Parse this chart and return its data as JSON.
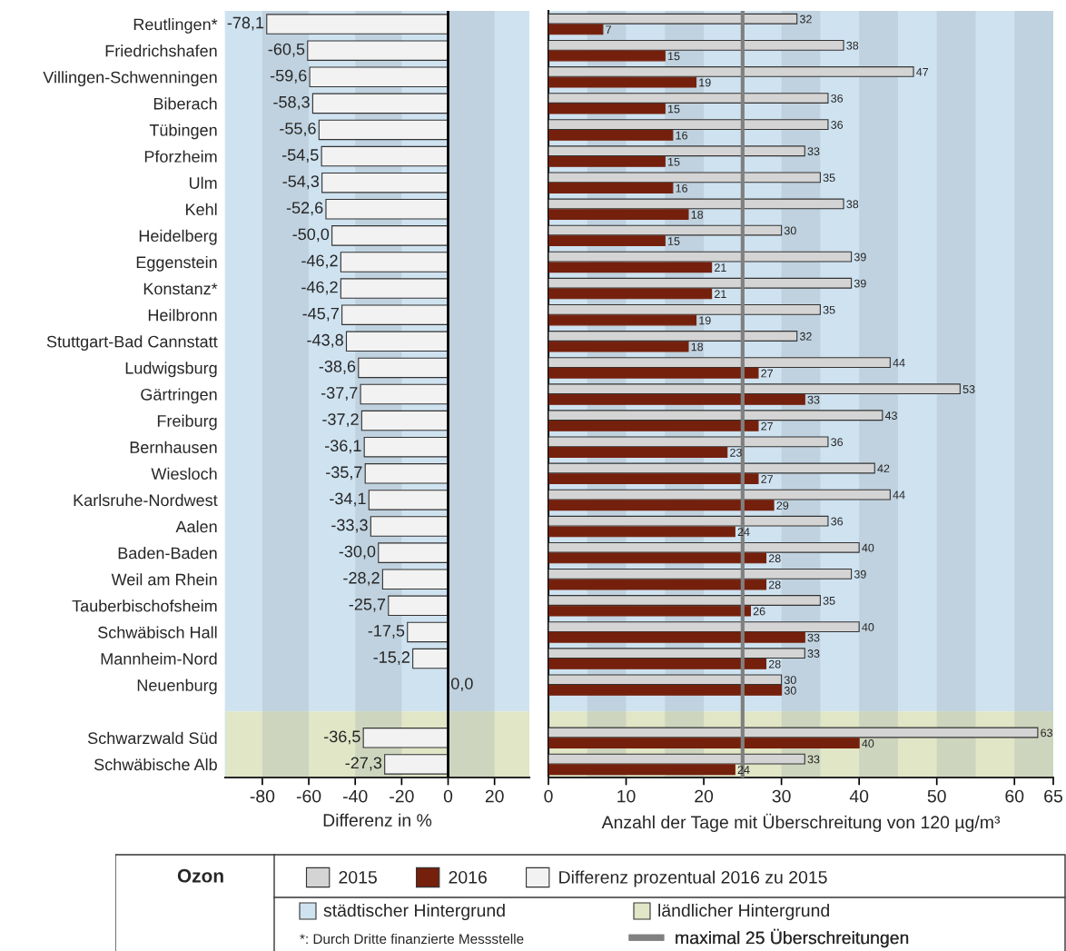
{
  "chart_data": [
    {
      "type": "bar",
      "orientation": "horizontal",
      "xlabel": "Differenz in %",
      "categories": [
        "Reutlingen*",
        "Friedrichshafen",
        "Villingen-Schwenningen",
        "Biberach",
        "Tübingen",
        "Pforzheim",
        "Ulm",
        "Kehl",
        "Heidelberg",
        "Eggenstein",
        "Konstanz*",
        "Heilbronn",
        "Stuttgart-Bad Cannstatt",
        "Ludwigsburg",
        "Gärtringen",
        "Freiburg",
        "Bernhausen",
        "Wiesloch",
        "Karlsruhe-Nordwest",
        "Aalen",
        "Baden-Baden",
        "Weil am Rhein",
        "Tauberbischofsheim",
        "Schwäbisch Hall",
        "Mannheim-Nord",
        "Neuenburg",
        null,
        "Schwarzwald Süd",
        "Schwäbische Alb"
      ],
      "series": [
        {
          "name": "Differenz prozentual 2016 zu 2015",
          "color": "#f2f2f2",
          "values": [
            -78.1,
            -60.5,
            -59.6,
            -58.3,
            -55.6,
            -54.5,
            -54.3,
            -52.6,
            -50.0,
            -46.2,
            -46.2,
            -45.7,
            -43.8,
            -38.6,
            -37.7,
            -37.2,
            -36.1,
            -35.7,
            -34.1,
            -33.3,
            -30.0,
            -28.2,
            -25.7,
            -17.5,
            -15.2,
            0.0,
            null,
            -36.5,
            -27.3
          ],
          "value_labels": [
            "-78,1",
            "-60,5",
            "-59,6",
            "-58,3",
            "-55,6",
            "-54,5",
            "-54,3",
            "-52,6",
            "-50,0",
            "-46,2",
            "-46,2",
            "-45,7",
            "-43,8",
            "-38,6",
            "-37,7",
            "-37,2",
            "-36,1",
            "-35,7",
            "-34,1",
            "-33,3",
            "-30,0",
            "-28,2",
            "-25,7",
            "-17,5",
            "-15,2",
            "0,0",
            null,
            "-36,5",
            "-27,3"
          ]
        }
      ],
      "xlim": [
        -96,
        35
      ],
      "xticks": [
        -80,
        -60,
        -40,
        -20,
        0,
        20
      ],
      "ref_lines": [
        {
          "axis": "x",
          "value": 0,
          "color": "#000000"
        }
      ],
      "bands": [
        {
          "axis": "x",
          "from": -80,
          "to": -60,
          "color": "#8c9aa6"
        },
        {
          "axis": "x",
          "from": -40,
          "to": -20,
          "color": "#8c9aa6"
        },
        {
          "axis": "x",
          "from": 0,
          "to": 20,
          "color": "#8c9aa6"
        }
      ],
      "annotations": [
        "*: Durch Dritte finanzierte Messstelle"
      ],
      "legend": "bottom",
      "grid": false
    },
    {
      "type": "bar",
      "orientation": "horizontal",
      "xlabel": "Anzahl der Tage mit Überschreitung von 120 µg/m³",
      "legend_title": "Ozon",
      "categories": [
        null,
        null,
        null,
        null,
        null,
        null,
        null,
        null,
        null,
        null,
        null,
        null,
        null,
        null,
        null,
        null,
        null,
        null,
        null,
        null,
        null,
        null,
        null,
        null,
        null,
        null,
        null,
        null,
        null
      ],
      "series": [
        {
          "name": "2015",
          "color": "#d4d4d4",
          "values": [
            32,
            38,
            47,
            36,
            36,
            33,
            35,
            38,
            30,
            39,
            39,
            35,
            32,
            44,
            53,
            43,
            36,
            42,
            44,
            36,
            40,
            39,
            35,
            40,
            33,
            30,
            null,
            63,
            33
          ]
        },
        {
          "name": "2016",
          "color": "#74200c",
          "values": [
            7,
            15,
            19,
            15,
            16,
            15,
            16,
            18,
            15,
            21,
            21,
            19,
            18,
            27,
            33,
            27,
            23,
            27,
            29,
            24,
            28,
            28,
            26,
            33,
            28,
            30,
            null,
            40,
            24
          ]
        }
      ],
      "data_labels": true,
      "xlim": [
        0,
        65
      ],
      "xticks": [
        0,
        10,
        20,
        30,
        40,
        50,
        60,
        65
      ],
      "ref_lines": [
        {
          "axis": "x",
          "value": 25,
          "label": "maximal 25 Überschreitungen",
          "color": "#808080"
        }
      ],
      "bands": [
        {
          "axis": "x",
          "from": 5,
          "to": 10,
          "color": "#8c9aa6"
        },
        {
          "axis": "x",
          "from": 15,
          "to": 20,
          "color": "#8c9aa6"
        },
        {
          "axis": "x",
          "from": 30,
          "to": 35,
          "color": "#8c9aa6"
        },
        {
          "axis": "x",
          "from": 40,
          "to": 45,
          "color": "#8c9aa6"
        },
        {
          "axis": "x",
          "from": 50,
          "to": 55,
          "color": "#8c9aa6"
        },
        {
          "axis": "x",
          "from": 60,
          "to": 65,
          "color": "#8c9aa6"
        }
      ],
      "annotations": [
        "städtischer Hintergrund",
        "ländlicher Hintergrund"
      ],
      "tick_labels": "x",
      "legend": "bottom",
      "grid": false
    }
  ]
}
